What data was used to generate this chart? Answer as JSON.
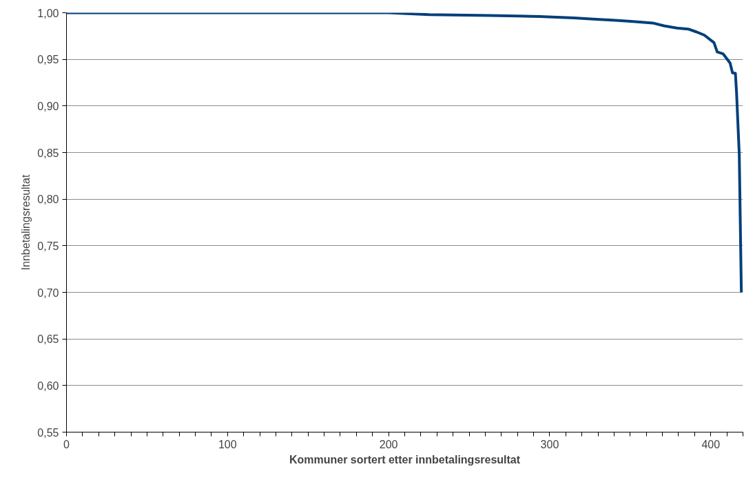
{
  "chart_data": {
    "type": "line",
    "xlabel": "Kommuner sortert etter innbetalingsresultat",
    "ylabel": "Innbetalingsresultat",
    "x": [
      0,
      100,
      200,
      225,
      263,
      294,
      315,
      329,
      339,
      349,
      356,
      364,
      371,
      379,
      386,
      391,
      396,
      402,
      404,
      407.6,
      412,
      413.5,
      415.3,
      416,
      417.7,
      419
    ],
    "series": [
      {
        "color": "#003f7a",
        "values": [
          1.0,
          1.0,
          1.0,
          0.998,
          0.997,
          0.996,
          0.9945,
          0.993,
          0.992,
          0.991,
          0.99,
          0.989,
          0.986,
          0.9835,
          0.9825,
          0.9795,
          0.976,
          0.968,
          0.958,
          0.956,
          0.946,
          0.9355,
          0.935,
          0.915,
          0.848,
          0.7
        ]
      }
    ],
    "xlim": [
      0,
      420
    ],
    "xticks": [
      0,
      {
        "value": 10,
        "label": null
      },
      {
        "value": 20,
        "label": null
      },
      {
        "value": 30,
        "label": null
      },
      {
        "value": 40,
        "label": null
      },
      {
        "value": 50,
        "label": null
      },
      {
        "value": 60,
        "label": null
      },
      {
        "value": 70,
        "label": null
      },
      {
        "value": 80,
        "label": null
      },
      {
        "value": 90,
        "label": null
      },
      100,
      {
        "value": 110,
        "label": null
      },
      {
        "value": 120,
        "label": null
      },
      {
        "value": 130,
        "label": null
      },
      {
        "value": 140,
        "label": null
      },
      {
        "value": 150,
        "label": null
      },
      {
        "value": 160,
        "label": null
      },
      {
        "value": 170,
        "label": null
      },
      {
        "value": 180,
        "label": null
      },
      {
        "value": 190,
        "label": null
      },
      200,
      {
        "value": 210,
        "label": null
      },
      {
        "value": 220,
        "label": null
      },
      {
        "value": 230,
        "label": null
      },
      {
        "value": 240,
        "label": null
      },
      {
        "value": 250,
        "label": null
      },
      {
        "value": 260,
        "label": null
      },
      {
        "value": 270,
        "label": null
      },
      {
        "value": 280,
        "label": null
      },
      {
        "value": 290,
        "label": null
      },
      300,
      {
        "value": 310,
        "label": null
      },
      {
        "value": 320,
        "label": null
      },
      {
        "value": 330,
        "label": null
      },
      {
        "value": 340,
        "label": null
      },
      {
        "value": 350,
        "label": null
      },
      {
        "value": 360,
        "label": null
      },
      {
        "value": 370,
        "label": null
      },
      {
        "value": 380,
        "label": null
      },
      {
        "value": 390,
        "label": null
      },
      400,
      {
        "value": 410,
        "label": null
      },
      {
        "value": 420,
        "label": null
      }
    ],
    "ylim": [
      0.55,
      1.0
    ],
    "yticks": [
      {
        "value": 0.55,
        "label": "0,55"
      },
      {
        "value": 0.6,
        "label": "0,60"
      },
      {
        "value": 0.65,
        "label": "0,65"
      },
      {
        "value": 0.7,
        "label": "0,70"
      },
      {
        "value": 0.75,
        "label": "0,75"
      },
      {
        "value": 0.8,
        "label": "0,80"
      },
      {
        "value": 0.85,
        "label": "0,85"
      },
      {
        "value": 0.9,
        "label": "0,90"
      },
      {
        "value": 0.95,
        "label": "0,95"
      },
      {
        "value": 1.0,
        "label": "1,00"
      }
    ],
    "grid": "y",
    "marker": "none",
    "line_style": "solid"
  }
}
